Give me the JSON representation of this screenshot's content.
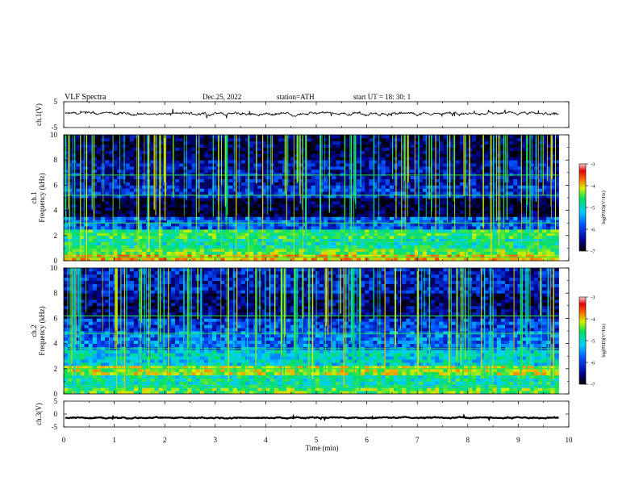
{
  "header": {
    "title": "VLF  Spectra",
    "date": "Dec.25, 2022",
    "station": "station=ATH",
    "start": "start  UT  =    18: 30: 1"
  },
  "chart_data": [
    {
      "type": "line",
      "panel": "ch1-waveform",
      "ylabel": "ch.1(V)",
      "ylim": [
        -5,
        5
      ],
      "y_ticks": [
        "5",
        "-5"
      ],
      "xlim": [
        0,
        10
      ],
      "data_end_min": 9.8,
      "color": "#000000",
      "baseline_v": 0.3,
      "fluctuation_v": 0.6
    },
    {
      "type": "heatmap",
      "panel": "ch1-spectrogram",
      "ylabel_top": "ch.1",
      "ylabel": "Frequency  (kHz)",
      "ylim": [
        0,
        10
      ],
      "y_ticks": [
        "0",
        "2",
        "4",
        "6",
        "8",
        "10"
      ],
      "xlim": [
        0,
        10
      ],
      "data_end_min": 9.8,
      "colorbar": {
        "label": "log(PSD)(V²/Hz)",
        "range": [
          -7,
          -3
        ],
        "ticks": [
          "-3",
          "-4",
          "-5",
          "-6",
          "-7"
        ]
      },
      "bands_khz": [
        {
          "from": 0,
          "to": 0.5,
          "log_psd": -4.3
        },
        {
          "from": 0.5,
          "to": 1.0,
          "log_psd": -4.8
        },
        {
          "from": 1.0,
          "to": 1.8,
          "log_psd": -5.2
        },
        {
          "from": 1.8,
          "to": 2.5,
          "log_psd": -5.0
        },
        {
          "from": 2.5,
          "to": 3.5,
          "log_psd": -6.0
        },
        {
          "from": 3.5,
          "to": 5.0,
          "log_psd": -6.8
        },
        {
          "from": 5.0,
          "to": 6.0,
          "log_psd": -6.2
        },
        {
          "from": 6.0,
          "to": 8.0,
          "log_psd": -6.4
        },
        {
          "from": 8.0,
          "to": 10.0,
          "log_psd": -6.7
        }
      ],
      "lines_khz": [
        0.3,
        0.9,
        1.5,
        2.2,
        3.0,
        5.2,
        6.8
      ]
    },
    {
      "type": "heatmap",
      "panel": "ch2-spectrogram",
      "ylabel_top": "ch.2",
      "ylabel": "Frequency  (kHz)",
      "ylim": [
        0,
        10
      ],
      "y_ticks": [
        "0",
        "2",
        "4",
        "6",
        "8",
        "10"
      ],
      "xlim": [
        0,
        10
      ],
      "data_end_min": 9.8,
      "colorbar": {
        "label": "log(PSD)(V²/Hz)",
        "range": [
          -7,
          -3
        ],
        "ticks": [
          "-3",
          "-4",
          "-5",
          "-6",
          "-7"
        ]
      },
      "bands_khz": [
        {
          "from": 0,
          "to": 0.5,
          "log_psd": -4.8
        },
        {
          "from": 0.5,
          "to": 1.5,
          "log_psd": -5.2
        },
        {
          "from": 1.5,
          "to": 2.3,
          "log_psd": -4.6
        },
        {
          "from": 2.3,
          "to": 3.5,
          "log_psd": -5.4
        },
        {
          "from": 3.5,
          "to": 5.0,
          "log_psd": -5.9
        },
        {
          "from": 5.0,
          "to": 6.0,
          "log_psd": -6.1
        },
        {
          "from": 6.0,
          "to": 8.0,
          "log_psd": -6.6
        },
        {
          "from": 8.0,
          "to": 10.0,
          "log_psd": -6.3
        }
      ],
      "lines_khz": [
        0.6,
        2.0,
        3.6,
        4.8,
        6.2
      ]
    },
    {
      "type": "line",
      "panel": "ch3-waveform",
      "ylabel": "ch.3(V)",
      "ylim": [
        -5,
        5
      ],
      "y_ticks": [
        "5",
        "0",
        "-5"
      ],
      "xlim": [
        0,
        10
      ],
      "data_end_min": 9.8,
      "color": "#000000",
      "baseline_v": -1.4,
      "fluctuation_v": 0.25
    }
  ],
  "x_axis": {
    "label": "Time  (min)",
    "ticks": [
      "0",
      "1",
      "2",
      "3",
      "4",
      "5",
      "6",
      "7",
      "8",
      "9",
      "10"
    ]
  }
}
